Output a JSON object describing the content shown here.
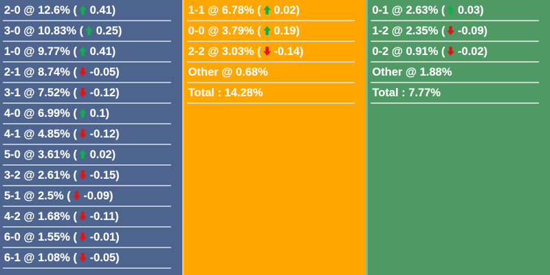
{
  "board": {
    "description": "correct-score probability board",
    "format": {
      "at_separator": " @ ",
      "total_separator": " : ",
      "change_open": " (",
      "arrow_gap": " ",
      "change_close": ")"
    },
    "colors": {
      "text": "#ffffff",
      "trend_up": "#0db04b",
      "trend_down": "#e41212"
    },
    "columns": [
      {
        "id": "home",
        "bg": "#4d648e",
        "divider": "#b9c3d6",
        "rows": [
          {
            "score": "2-0",
            "pct": "12.6%",
            "trend": "up",
            "change": "0.41"
          },
          {
            "score": "3-0",
            "pct": "10.83%",
            "trend": "up",
            "change": "0.25"
          },
          {
            "score": "1-0",
            "pct": "9.77%",
            "trend": "up",
            "change": "0.41"
          },
          {
            "score": "2-1",
            "pct": "8.74%",
            "trend": "down",
            "change": "-0.05"
          },
          {
            "score": "3-1",
            "pct": "7.52%",
            "trend": "down",
            "change": "-0.12"
          },
          {
            "score": "4-0",
            "pct": "6.99%",
            "trend": "up",
            "change": "0.1"
          },
          {
            "score": "4-1",
            "pct": "4.85%",
            "trend": "down",
            "change": "-0.12"
          },
          {
            "score": "5-0",
            "pct": "3.61%",
            "trend": "up",
            "change": "0.02"
          },
          {
            "score": "3-2",
            "pct": "2.61%",
            "trend": "down",
            "change": "-0.15"
          },
          {
            "score": "5-1",
            "pct": "2.5%",
            "trend": "down",
            "change": "-0.09"
          },
          {
            "score": "4-2",
            "pct": "1.68%",
            "trend": "down",
            "change": "-0.11"
          },
          {
            "score": "6-0",
            "pct": "1.55%",
            "trend": "down",
            "change": "-0.01"
          },
          {
            "score": "6-1",
            "pct": "1.08%",
            "trend": "down",
            "change": "-0.05"
          }
        ]
      },
      {
        "id": "draw",
        "bg": "#ffa600",
        "divider": "#e3ddd2",
        "rows": [
          {
            "score": "1-1",
            "pct": "6.78%",
            "trend": "up",
            "change": "0.02"
          },
          {
            "score": "0-0",
            "pct": "3.79%",
            "trend": "up",
            "change": "0.19"
          },
          {
            "score": "2-2",
            "pct": "3.03%",
            "trend": "down",
            "change": "-0.14"
          },
          {
            "score": "Other",
            "pct": "0.68%"
          },
          {
            "score": "Total",
            "pct": "14.28%",
            "is_total": true
          }
        ]
      },
      {
        "id": "away",
        "bg": "#4f9a64",
        "divider": "#cdd9cd",
        "rows": [
          {
            "score": "0-1",
            "pct": "2.63%",
            "trend": "up",
            "change": "0.03"
          },
          {
            "score": "1-2",
            "pct": "2.35%",
            "trend": "down",
            "change": "-0.09"
          },
          {
            "score": "0-2",
            "pct": "0.91%",
            "trend": "down",
            "change": "-0.02"
          },
          {
            "score": "Other",
            "pct": "1.88%"
          },
          {
            "score": "Total",
            "pct": "7.77%",
            "is_total": true
          }
        ]
      }
    ]
  }
}
